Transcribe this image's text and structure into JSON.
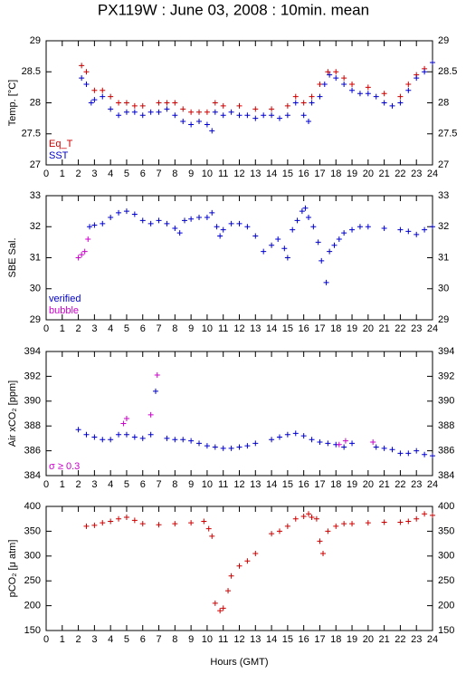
{
  "title": "PX119W : June 03, 2008 : 10min. mean",
  "chart_data": [
    {
      "type": "scatter",
      "ylabel": "Temp. [°C]",
      "xlim": [
        0,
        24
      ],
      "xticks": [
        0,
        1,
        2,
        3,
        4,
        5,
        6,
        7,
        8,
        9,
        10,
        11,
        12,
        13,
        14,
        15,
        16,
        17,
        18,
        19,
        20,
        21,
        22,
        23,
        24
      ],
      "ylim": [
        27,
        29
      ],
      "yticks": [
        27,
        27.5,
        28,
        28.5,
        29
      ],
      "series": [
        {
          "name": "Eq_T",
          "color": "#cc0000",
          "x": [
            2.2,
            2.5,
            3,
            3.5,
            4,
            4.5,
            5,
            5.5,
            6,
            7,
            7.5,
            8,
            8.5,
            9,
            9.5,
            10,
            10.5,
            11,
            12,
            13,
            14,
            15,
            15.5,
            16,
            16.5,
            17,
            17.5,
            18,
            18.5,
            19,
            20,
            21,
            22,
            22.5,
            23,
            23.5,
            24
          ],
          "values": [
            28.6,
            28.5,
            28.2,
            28.2,
            28.1,
            28,
            28,
            27.95,
            27.95,
            28,
            28,
            28,
            27.9,
            27.85,
            27.85,
            27.85,
            28,
            27.95,
            27.95,
            27.9,
            27.9,
            27.95,
            28.1,
            28,
            28.1,
            28.3,
            28.5,
            28.5,
            28.4,
            28.3,
            28.25,
            28.15,
            28.1,
            28.3,
            28.45,
            28.55,
            28.65
          ]
        },
        {
          "name": "SST",
          "color": "#0000cc",
          "x": [
            2.2,
            2.5,
            2.8,
            3,
            3.5,
            4,
            4.5,
            5,
            5.5,
            6,
            6.5,
            7,
            7.5,
            8,
            8.5,
            9,
            9.5,
            10,
            10.3,
            10.5,
            11,
            11.5,
            12,
            12.5,
            13,
            13.5,
            14,
            14.5,
            15,
            15.5,
            16,
            16.3,
            16.5,
            17,
            17.3,
            17.6,
            18,
            18.5,
            19,
            19.5,
            20,
            20.5,
            21,
            21.5,
            22,
            22.5,
            23,
            23.5,
            24
          ],
          "values": [
            28.4,
            28.3,
            28,
            28.05,
            28.1,
            27.9,
            27.8,
            27.85,
            27.85,
            27.8,
            27.85,
            27.85,
            27.9,
            27.8,
            27.7,
            27.65,
            27.7,
            27.65,
            27.55,
            27.85,
            27.8,
            27.85,
            27.8,
            27.8,
            27.75,
            27.8,
            27.8,
            27.75,
            27.8,
            28,
            27.8,
            27.7,
            28,
            28.1,
            28.3,
            28.45,
            28.4,
            28.3,
            28.2,
            28.15,
            28.15,
            28.1,
            28,
            27.95,
            28,
            28.2,
            28.4,
            28.5,
            28.65
          ]
        }
      ]
    },
    {
      "type": "scatter",
      "ylabel": "SBE Sal.",
      "xlim": [
        0,
        24
      ],
      "xticks": [
        0,
        1,
        2,
        3,
        4,
        5,
        6,
        7,
        8,
        9,
        10,
        11,
        12,
        13,
        14,
        15,
        16,
        17,
        18,
        19,
        20,
        21,
        22,
        23,
        24
      ],
      "ylim": [
        29,
        33
      ],
      "yticks": [
        29,
        30,
        31,
        32,
        33
      ],
      "series": [
        {
          "name": "verified",
          "color": "#0000cc",
          "x": [
            2.7,
            3,
            3.5,
            4,
            4.5,
            5,
            5.5,
            6,
            6.5,
            7,
            7.5,
            8,
            8.3,
            8.6,
            9,
            9.5,
            10,
            10.3,
            10.6,
            10.8,
            11,
            11.5,
            12,
            12.5,
            13,
            13.5,
            14,
            14.4,
            14.8,
            15,
            15.3,
            15.6,
            15.9,
            16.1,
            16.3,
            16.6,
            16.9,
            17.1,
            17.4,
            17.6,
            17.9,
            18.2,
            18.5,
            19,
            19.5,
            20,
            21,
            22,
            22.5,
            23,
            23.5,
            24
          ],
          "values": [
            32,
            32.05,
            32.1,
            32.3,
            32.45,
            32.5,
            32.4,
            32.2,
            32.1,
            32.2,
            32.1,
            31.95,
            31.8,
            32.2,
            32.25,
            32.3,
            32.3,
            32.45,
            32,
            31.7,
            31.9,
            32.1,
            32.1,
            32,
            31.7,
            31.2,
            31.4,
            31.6,
            31.3,
            31,
            31.9,
            32.2,
            32.5,
            32.6,
            32.3,
            32,
            31.5,
            30.9,
            30.2,
            31.2,
            31.4,
            31.6,
            31.8,
            31.9,
            32,
            32,
            31.95,
            31.9,
            31.85,
            31.75,
            31.9,
            32
          ]
        },
        {
          "name": "bubble",
          "color": "#cc00cc",
          "x": [
            2,
            2.2,
            2.4,
            2.6
          ],
          "values": [
            31,
            31.1,
            31.2,
            31.6
          ]
        }
      ]
    },
    {
      "type": "scatter",
      "ylabel": "Air xCO₂ [ppm]",
      "xlim": [
        0,
        24
      ],
      "xticks": [
        0,
        1,
        2,
        3,
        4,
        5,
        6,
        7,
        8,
        9,
        10,
        11,
        12,
        13,
        14,
        15,
        16,
        17,
        18,
        19,
        20,
        21,
        22,
        23,
        24
      ],
      "ylim": [
        384,
        394
      ],
      "yticks": [
        384,
        386,
        388,
        390,
        392,
        394
      ],
      "series": [
        {
          "color": "#0000cc",
          "x": [
            2,
            2.5,
            3,
            3.5,
            4,
            4.5,
            5,
            5.5,
            6,
            6.5,
            6.8,
            7.5,
            8,
            8.5,
            9,
            9.5,
            10,
            10.5,
            11,
            11.5,
            12,
            12.5,
            13,
            14,
            14.5,
            15,
            15.5,
            16,
            16.5,
            17,
            17.5,
            18,
            18.5,
            19,
            20.5,
            21,
            21.5,
            22,
            22.5,
            23,
            23.5,
            24
          ],
          "values": [
            387.7,
            387.3,
            387.1,
            386.9,
            386.9,
            387.3,
            387.3,
            387.1,
            387,
            387.3,
            390.8,
            387,
            386.9,
            386.9,
            386.8,
            386.6,
            386.4,
            386.3,
            386.2,
            386.2,
            386.3,
            386.4,
            386.6,
            386.9,
            387.1,
            387.3,
            387.4,
            387.2,
            386.9,
            386.7,
            386.6,
            386.5,
            386.3,
            386.6,
            386.3,
            386.2,
            386.1,
            385.8,
            385.8,
            386,
            385.7,
            385.6
          ]
        },
        {
          "name": "σ ≥ 0.3",
          "color": "#cc00cc",
          "x": [
            4.8,
            5,
            6.5,
            6.9,
            18.2,
            18.6,
            20.3
          ],
          "values": [
            388.2,
            388.6,
            388.9,
            392.1,
            386.5,
            386.8,
            386.7
          ]
        }
      ]
    },
    {
      "type": "scatter",
      "ylabel": "pCO₂ [μ atm]",
      "xlabel": "Hours (GMT)",
      "xlim": [
        0,
        24
      ],
      "xticks": [
        0,
        1,
        2,
        3,
        4,
        5,
        6,
        7,
        8,
        9,
        10,
        11,
        12,
        13,
        14,
        15,
        16,
        17,
        18,
        19,
        20,
        21,
        22,
        23,
        24
      ],
      "ylim": [
        150,
        400
      ],
      "yticks": [
        150,
        200,
        250,
        300,
        350,
        400
      ],
      "series": [
        {
          "color": "#cc0000",
          "x": [
            2.5,
            3,
            3.5,
            4,
            4.5,
            5,
            5.5,
            6,
            7,
            8,
            9,
            9.8,
            10.1,
            10.3,
            10.5,
            10.8,
            11,
            11.3,
            11.5,
            12,
            12.5,
            13,
            14,
            14.5,
            15,
            15.5,
            16,
            16.3,
            16.5,
            16.8,
            17,
            17.2,
            17.5,
            18,
            18.5,
            19,
            20,
            21,
            22,
            22.5,
            23,
            23.5,
            24
          ],
          "values": [
            360,
            362,
            367,
            370,
            375,
            378,
            372,
            365,
            363,
            365,
            367,
            370,
            355,
            340,
            205,
            190,
            195,
            230,
            260,
            280,
            290,
            305,
            345,
            350,
            360,
            375,
            380,
            385,
            378,
            375,
            330,
            305,
            350,
            360,
            365,
            365,
            367,
            368,
            368,
            370,
            375,
            385,
            382
          ]
        }
      ]
    }
  ]
}
